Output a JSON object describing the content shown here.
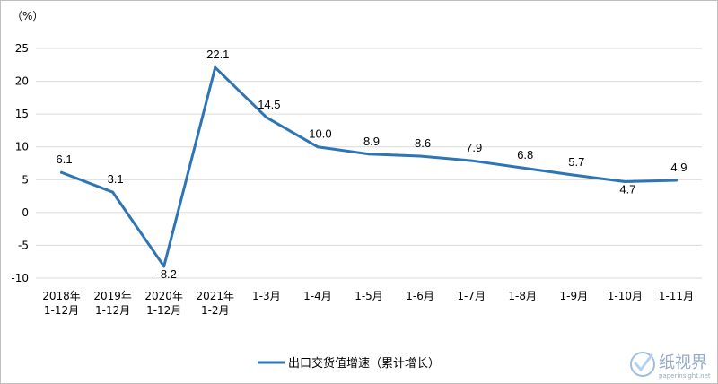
{
  "chart_data": {
    "type": "line",
    "unit_label": "（%）",
    "categories": [
      [
        "2018年",
        "1-12月"
      ],
      [
        "2019年",
        "1-12月"
      ],
      [
        "2020年",
        "1-12月"
      ],
      [
        "2021年",
        "1-2月"
      ],
      [
        "1-3月"
      ],
      [
        "1-4月"
      ],
      [
        "1-5月"
      ],
      [
        "1-6月"
      ],
      [
        "1-7月"
      ],
      [
        "1-8月"
      ],
      [
        "1-9月"
      ],
      [
        "1-10月"
      ],
      [
        "1-11月"
      ]
    ],
    "series": [
      {
        "name": "出口交货值增速（累计增长）",
        "color": "#2e75b6",
        "values": [
          6.1,
          3.1,
          -8.2,
          22.1,
          14.5,
          10.0,
          8.9,
          8.6,
          7.9,
          6.8,
          5.7,
          4.7,
          4.9
        ],
        "labels": [
          "6.1",
          "3.1",
          "-8.2",
          "22.1",
          "14.5",
          "10.0",
          "8.9",
          "8.6",
          "7.9",
          "6.8",
          "5.7",
          "4.7",
          "4.9"
        ]
      }
    ],
    "ylim": [
      -10,
      25
    ],
    "yticks": [
      25,
      20,
      15,
      10,
      5,
      0,
      -5,
      -10
    ],
    "grid": true,
    "legend": "bottom-center"
  },
  "watermark": {
    "text": "纸视界",
    "sub": "paperinsight.net"
  }
}
